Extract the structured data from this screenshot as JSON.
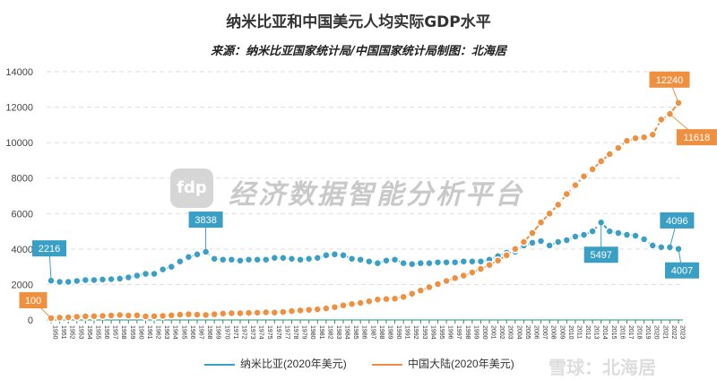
{
  "title": "纳米比亚和中国美元人均实际GDP水平",
  "subtitle": "来源：纳米比亚国家统计局/中国国家统计局制图：北海居",
  "watermark": {
    "logo": "fdp",
    "text": "经济数据智能分析平台"
  },
  "corner_watermark": "雪球：北海居",
  "colors": {
    "namibia": "#3a9fc4",
    "china": "#ee9040"
  },
  "chart_data": {
    "type": "line",
    "title": "纳米比亚和中国美元人均实际GDP水平",
    "xlabel": "",
    "ylabel": "",
    "ylim": [
      0,
      14000
    ],
    "yticks": [
      0,
      2000,
      4000,
      6000,
      8000,
      10000,
      12000,
      14000
    ],
    "grid": true,
    "legend": "bottom",
    "x": [
      1950,
      1951,
      1952,
      1953,
      1954,
      1955,
      1956,
      1957,
      1958,
      1959,
      1960,
      1961,
      1962,
      1963,
      1964,
      1965,
      1966,
      1967,
      1968,
      1969,
      1970,
      1971,
      1972,
      1973,
      1974,
      1975,
      1976,
      1977,
      1978,
      1979,
      1980,
      1981,
      1982,
      1983,
      1984,
      1985,
      1986,
      1987,
      1988,
      1989,
      1990,
      1991,
      1992,
      1993,
      1994,
      1995,
      1996,
      1997,
      1998,
      1999,
      2000,
      2001,
      2002,
      2003,
      2004,
      2005,
      2006,
      2007,
      2008,
      2009,
      2010,
      2011,
      2012,
      2013,
      2014,
      2015,
      2016,
      2017,
      2018,
      2019,
      2020,
      2021,
      2022,
      2023
    ],
    "series": [
      {
        "name": "纳米比亚(2020年美元)",
        "color": "#3a9fc4",
        "values": [
          2216,
          2150,
          2150,
          2200,
          2250,
          2250,
          2280,
          2300,
          2330,
          2400,
          2500,
          2600,
          2600,
          2850,
          3000,
          3300,
          3550,
          3700,
          3838,
          3450,
          3400,
          3400,
          3350,
          3400,
          3400,
          3400,
          3500,
          3500,
          3450,
          3400,
          3450,
          3500,
          3650,
          3700,
          3650,
          3450,
          3400,
          3300,
          3200,
          3350,
          3400,
          3200,
          3150,
          3200,
          3200,
          3250,
          3250,
          3250,
          3300,
          3300,
          3300,
          3400,
          3600,
          3800,
          3850,
          4200,
          4350,
          4450,
          4200,
          4400,
          4500,
          4700,
          4800,
          5000,
          5497,
          5000,
          4900,
          4800,
          4750,
          4550,
          4200,
          4100,
          4096,
          4007
        ]
      },
      {
        "name": "中国大陆(2020年美元)",
        "color": "#ee9040",
        "values": [
          100,
          130,
          150,
          180,
          200,
          210,
          230,
          250,
          280,
          250,
          260,
          200,
          210,
          230,
          260,
          300,
          320,
          300,
          280,
          320,
          360,
          380,
          380,
          400,
          410,
          430,
          420,
          450,
          500,
          540,
          570,
          600,
          650,
          720,
          820,
          900,
          960,
          1050,
          1150,
          1180,
          1200,
          1300,
          1480,
          1660,
          1850,
          2020,
          2200,
          2360,
          2500,
          2680,
          2880,
          3100,
          3350,
          3650,
          4000,
          4400,
          4900,
          5500,
          6000,
          6500,
          7100,
          7600,
          8100,
          8500,
          8950,
          9350,
          9700,
          10100,
          10250,
          10300,
          10450,
          11300,
          11618,
          12240
        ]
      }
    ],
    "annotations": [
      {
        "series": 0,
        "year": 1950,
        "label": "2216"
      },
      {
        "series": 0,
        "year": 1968,
        "label": "3838"
      },
      {
        "series": 0,
        "year": 2014,
        "label": "5497"
      },
      {
        "series": 0,
        "year": 2022,
        "label": "4096"
      },
      {
        "series": 0,
        "year": 2023,
        "label": "4007"
      },
      {
        "series": 1,
        "year": 1950,
        "label": "100"
      },
      {
        "series": 1,
        "year": 2023,
        "label": "12240"
      },
      {
        "series": 1,
        "year": 2022,
        "label": "11618"
      }
    ]
  }
}
